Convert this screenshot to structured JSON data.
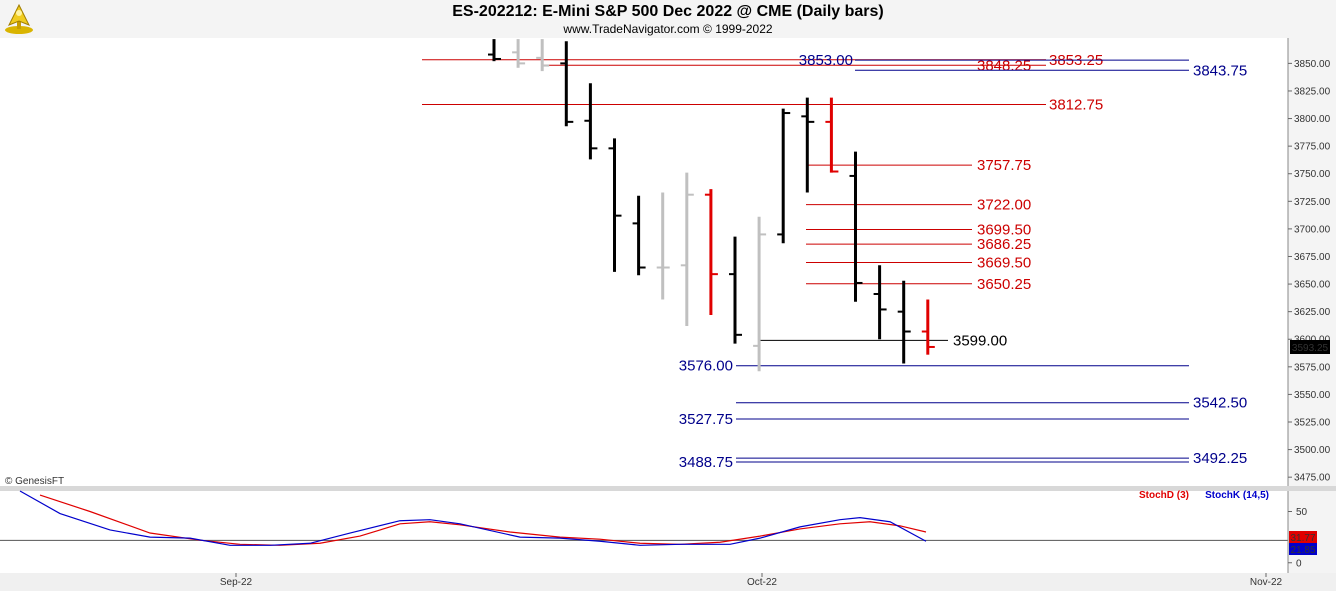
{
  "header": {
    "title": "ES-202212:  E-Mini S&P 500 Dec 2022 @ CME  (Daily bars)",
    "subtitle": "www.TradeNavigator.com © 1999-2022",
    "logo_icon": "navigator-logo-icon"
  },
  "copyright": "© GenesisFT",
  "last_price": "3593.25",
  "colors": {
    "background": "#ffffff",
    "bar_black": "#000000",
    "bar_gray": "#c0c0c0",
    "bar_red": "#e00000",
    "level_red": "#cc0000",
    "level_blue": "#00008b",
    "level_black": "#000000",
    "stoch_d": "#e00000",
    "stoch_k": "#0000cc"
  },
  "chart_data": [
    {
      "type": "ohlc",
      "yticks": [
        "3850.00",
        "3825.00",
        "3800.00",
        "3775.00",
        "3750.00",
        "3725.00",
        "3700.00",
        "3675.00",
        "3650.00",
        "3625.00",
        "3600.00",
        "3575.00",
        "3550.00",
        "3525.00",
        "3500.00",
        "3475.00"
      ],
      "ylim": [
        3467,
        3873
      ],
      "bars": [
        {
          "c": "black",
          "o": 3858,
          "h": 3872,
          "l": 3852,
          "cl": 3854
        },
        {
          "c": "gray",
          "o": 3860,
          "h": 3872,
          "l": 3846,
          "cl": 3850
        },
        {
          "c": "gray",
          "o": 3855,
          "h": 3872,
          "l": 3843,
          "cl": 3848
        },
        {
          "c": "black",
          "o": 3850,
          "h": 3870,
          "l": 3793,
          "cl": 3797
        },
        {
          "c": "black",
          "o": 3798,
          "h": 3832,
          "l": 3763,
          "cl": 3773
        },
        {
          "c": "black",
          "o": 3773,
          "h": 3782,
          "l": 3661,
          "cl": 3712
        },
        {
          "c": "black",
          "o": 3705,
          "h": 3730,
          "l": 3658,
          "cl": 3665
        },
        {
          "c": "gray",
          "o": 3665,
          "h": 3733,
          "l": 3636,
          "cl": 3665
        },
        {
          "c": "gray",
          "o": 3667,
          "h": 3751,
          "l": 3612,
          "cl": 3731
        },
        {
          "c": "red",
          "o": 3731,
          "h": 3736,
          "l": 3622,
          "cl": 3659
        },
        {
          "c": "black",
          "o": 3659,
          "h": 3693,
          "l": 3596,
          "cl": 3604
        },
        {
          "c": "gray",
          "o": 3594,
          "h": 3711,
          "l": 3571,
          "cl": 3695
        },
        {
          "c": "black",
          "o": 3695,
          "h": 3809,
          "l": 3687,
          "cl": 3805
        },
        {
          "c": "black",
          "o": 3802,
          "h": 3819,
          "l": 3733,
          "cl": 3797
        },
        {
          "c": "red",
          "o": 3797,
          "h": 3819,
          "l": 3751,
          "cl": 3752
        },
        {
          "c": "black",
          "o": 3748,
          "h": 3770,
          "l": 3634,
          "cl": 3651
        },
        {
          "c": "black",
          "o": 3641,
          "h": 3667,
          "l": 3600,
          "cl": 3627
        },
        {
          "c": "black",
          "o": 3625,
          "h": 3653,
          "l": 3578,
          "cl": 3607
        },
        {
          "c": "red",
          "o": 3607,
          "h": 3636,
          "l": 3586,
          "cl": 3593
        }
      ],
      "levels": [
        {
          "price": 3853.25,
          "label": "3853.25",
          "color": "red",
          "x1": 422,
          "x2": 1046,
          "lx": 1049,
          "anchor": "start"
        },
        {
          "price": 3848.25,
          "label": "3848.25",
          "color": "red",
          "x1": 543,
          "x2": 1046,
          "lx": 977,
          "anchor": "start"
        },
        {
          "price": 3853.0,
          "label": "3853.00",
          "color": "blue",
          "x1": 855,
          "x2": 1189,
          "lx": 853,
          "anchor": "end"
        },
        {
          "price": 3843.75,
          "label": "3843.75",
          "color": "blue",
          "x1": 855,
          "x2": 1189,
          "lx": 1193,
          "anchor": "start"
        },
        {
          "price": 3812.75,
          "label": "3812.75",
          "color": "red",
          "x1": 422,
          "x2": 1046,
          "lx": 1049,
          "anchor": "start"
        },
        {
          "price": 3757.75,
          "label": "3757.75",
          "color": "red",
          "x1": 806,
          "x2": 972,
          "lx": 977,
          "anchor": "start"
        },
        {
          "price": 3722.0,
          "label": "3722.00",
          "color": "red",
          "x1": 806,
          "x2": 972,
          "lx": 977,
          "anchor": "start"
        },
        {
          "price": 3699.5,
          "label": "3699.50",
          "color": "red",
          "x1": 806,
          "x2": 972,
          "lx": 977,
          "anchor": "start"
        },
        {
          "price": 3686.25,
          "label": "3686.25",
          "color": "red",
          "x1": 806,
          "x2": 972,
          "lx": 977,
          "anchor": "start"
        },
        {
          "price": 3669.5,
          "label": "3669.50",
          "color": "red",
          "x1": 806,
          "x2": 972,
          "lx": 977,
          "anchor": "start"
        },
        {
          "price": 3650.25,
          "label": "3650.25",
          "color": "red",
          "x1": 806,
          "x2": 972,
          "lx": 977,
          "anchor": "start"
        },
        {
          "price": 3599.0,
          "label": "3599.00",
          "color": "black",
          "x1": 760,
          "x2": 948,
          "lx": 953,
          "anchor": "start"
        },
        {
          "price": 3576.0,
          "label": "3576.00",
          "color": "blue",
          "x1": 736,
          "x2": 1189,
          "lx": 733,
          "anchor": "end"
        },
        {
          "price": 3542.5,
          "label": "3542.50",
          "color": "blue",
          "x1": 736,
          "x2": 1189,
          "lx": 1193,
          "anchor": "start"
        },
        {
          "price": 3527.75,
          "label": "3527.75",
          "color": "blue",
          "x1": 736,
          "x2": 1189,
          "lx": 733,
          "anchor": "end"
        },
        {
          "price": 3492.25,
          "label": "3492.25",
          "color": "blue",
          "x1": 736,
          "x2": 1189,
          "lx": 1193,
          "anchor": "start"
        },
        {
          "price": 3488.75,
          "label": "3488.75",
          "color": "blue",
          "x1": 736,
          "x2": 1189,
          "lx": 733,
          "anchor": "end"
        }
      ]
    },
    {
      "type": "line",
      "legend": [
        "StochD (3)",
        "StochK (14,5)"
      ],
      "yticks": [
        "50",
        "0"
      ],
      "ylim": [
        -10,
        70
      ],
      "ref_level": 21.85,
      "last_values": {
        "d": "31.77",
        "k": "21.85"
      },
      "xticks": [
        "Sep-22",
        "Oct-22",
        "Nov-22"
      ],
      "series": [
        {
          "name": "StochD (3)",
          "color": "red",
          "points": [
            [
              40,
              66
            ],
            [
              90,
              50
            ],
            [
              150,
              29
            ],
            [
              200,
              22
            ],
            [
              240,
              18
            ],
            [
              280,
              17
            ],
            [
              320,
              19
            ],
            [
              360,
              26
            ],
            [
              400,
              38
            ],
            [
              430,
              40
            ],
            [
              460,
              37
            ],
            [
              510,
              30
            ],
            [
              560,
              25
            ],
            [
              600,
              23
            ],
            [
              640,
              19
            ],
            [
              680,
              18
            ],
            [
              720,
              20
            ],
            [
              760,
              26
            ],
            [
              800,
              33
            ],
            [
              840,
              38
            ],
            [
              870,
              40
            ],
            [
              900,
              36
            ],
            [
              926,
              30
            ]
          ]
        },
        {
          "name": "StochK (14,5)",
          "color": "blue",
          "points": [
            [
              20,
              70
            ],
            [
              60,
              48
            ],
            [
              110,
              32
            ],
            [
              150,
              25
            ],
            [
              190,
              24
            ],
            [
              230,
              17
            ],
            [
              270,
              17
            ],
            [
              310,
              19
            ],
            [
              350,
              29
            ],
            [
              400,
              41
            ],
            [
              430,
              42
            ],
            [
              460,
              38
            ],
            [
              520,
              25
            ],
            [
              560,
              24
            ],
            [
              600,
              21
            ],
            [
              640,
              17
            ],
            [
              680,
              18
            ],
            [
              730,
              18
            ],
            [
              760,
              24
            ],
            [
              800,
              35
            ],
            [
              840,
              42
            ],
            [
              860,
              44
            ],
            [
              890,
              40
            ],
            [
              926,
              21
            ]
          ]
        }
      ]
    }
  ]
}
